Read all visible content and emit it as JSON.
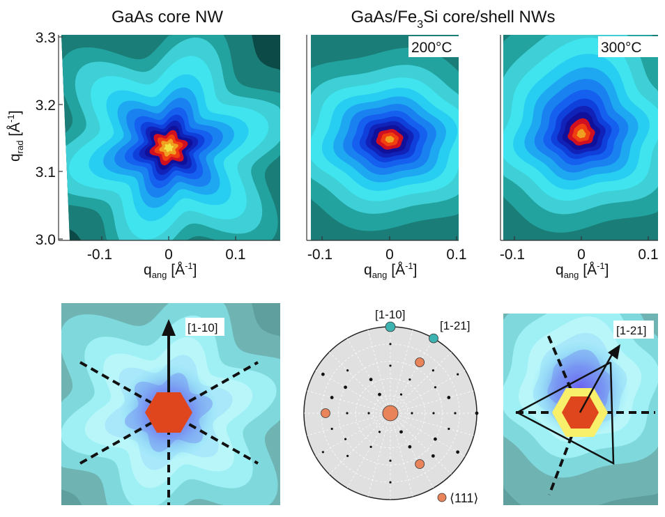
{
  "titles": {
    "left": "GaAs core NW",
    "right_pre": "GaAs/Fe",
    "right_sub": "3",
    "right_post": "Si core/shell NWs"
  },
  "chart_data": [
    {
      "type": "heatmap",
      "name": "GaAs core NW",
      "xlabel": "q",
      "xlabel_sub": "ang",
      "xunit": "[Å",
      "xunit_sup": "-1",
      "xunit_end": "]",
      "ylabel": "q",
      "ylabel_sub": "rad",
      "xlim": [
        -0.15,
        0.15
      ],
      "ylim": [
        3.0,
        3.3
      ],
      "xticks": [
        "-0.1",
        "0",
        "0.1"
      ],
      "yticks": [
        "3.0",
        "3.1",
        "3.2",
        "3.3"
      ],
      "peak": [
        0.0,
        3.133
      ],
      "shape": "six-fold star"
    },
    {
      "type": "heatmap",
      "name": "200°C",
      "label": "200°C",
      "xlim": [
        -0.12,
        0.1
      ],
      "ylim": [
        3.0,
        3.3
      ],
      "xticks": [
        "-0.1",
        "0",
        "0.1"
      ],
      "peak": [
        0.0,
        3.14
      ],
      "shape": "elliptical"
    },
    {
      "type": "heatmap",
      "name": "300°C",
      "label": "300°C",
      "xlim": [
        -0.12,
        0.1
      ],
      "ylim": [
        3.0,
        3.3
      ],
      "xticks": [
        "-0.1",
        "0",
        "0.1"
      ],
      "peak": [
        0.0,
        3.15
      ],
      "shape": "elliptical with upper lobe"
    }
  ],
  "bottom": {
    "left_direction": "[1-10]",
    "stereogram": {
      "label_a": "[1-10]",
      "label_b": "[1-21]",
      "legend": "⟨111⟩"
    },
    "right_direction": "[1-21]"
  },
  "colors": {
    "dark": "#0b4a46",
    "teal": "#1b7d77",
    "hexagon": "#e0461e",
    "yellow": "#f8f06a",
    "pole_teal": "#3cb3b0",
    "pole_orange": "#e8835a"
  }
}
